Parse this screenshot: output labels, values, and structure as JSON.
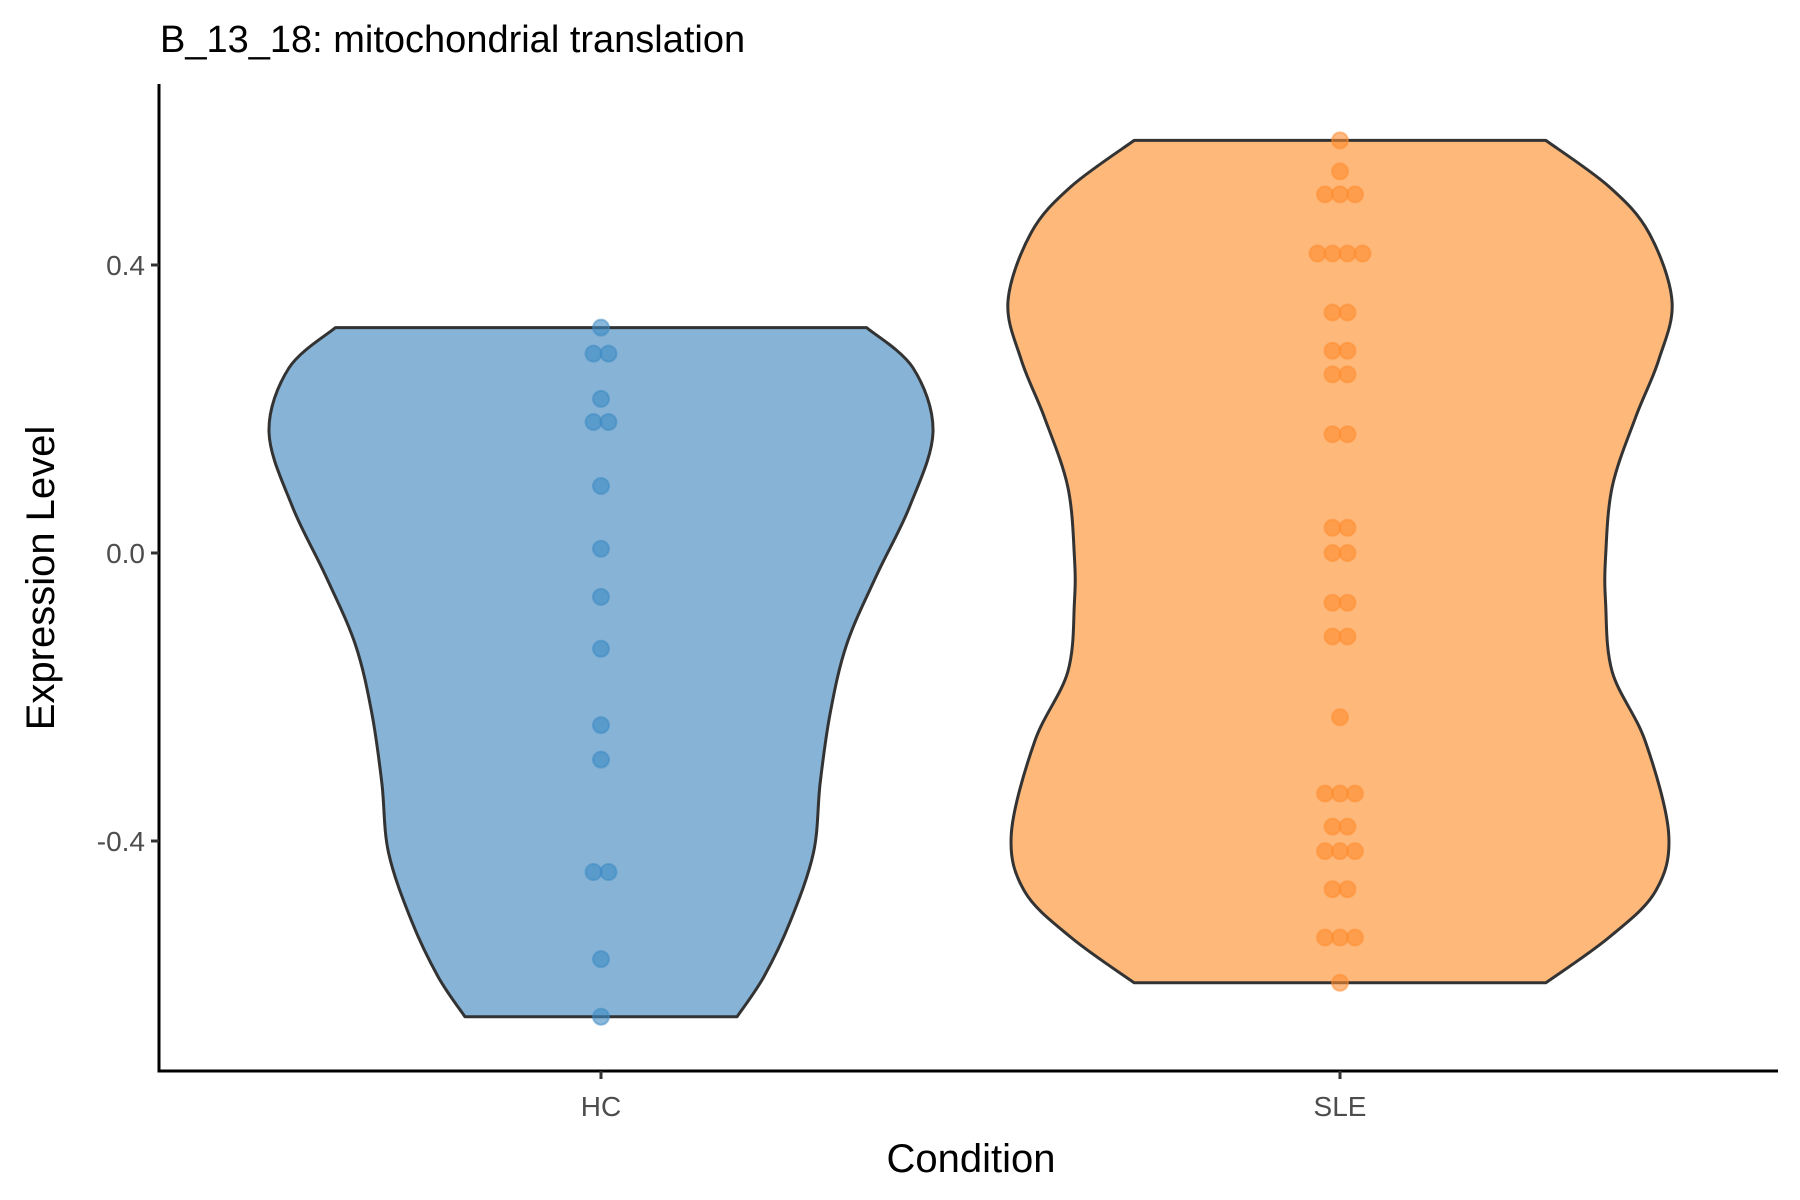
{
  "chart_data": {
    "type": "violin",
    "title": "B_13_18: mitochondrial translation",
    "xlabel": "Condition",
    "ylabel": "Expression Level",
    "ylim": [
      -0.72,
      0.66
    ],
    "yticks": [
      -0.4,
      0.0,
      0.4
    ],
    "ytick_labels": [
      "-0.4",
      "0.0",
      "0.4"
    ],
    "categories": [
      "HC",
      "SLE"
    ],
    "grid": false,
    "legend": "none",
    "series": [
      {
        "name": "HC",
        "fill_color": "#86b3d6",
        "point_color": "#3c8ac3",
        "points": [
          0.313,
          0.277,
          0.277,
          0.214,
          0.182,
          0.182,
          0.093,
          0.006,
          -0.061,
          -0.133,
          -0.239,
          -0.287,
          -0.443,
          -0.443,
          -0.564,
          -0.644
        ],
        "density_profile": {
          "y": [
            0.313,
            0.257,
            0.168,
            0.065,
            -0.031,
            -0.127,
            -0.223,
            -0.32,
            -0.416,
            -0.512,
            -0.589,
            -0.644
          ],
          "relative_width": [
            0.8,
            0.94,
            1.0,
            0.93,
            0.83,
            0.74,
            0.69,
            0.66,
            0.64,
            0.57,
            0.49,
            0.41
          ]
        }
      },
      {
        "name": "SLE",
        "fill_color": "#feb87a",
        "point_color": "#fd8c2e",
        "points": [
          0.573,
          0.53,
          0.498,
          0.498,
          0.498,
          0.416,
          0.416,
          0.416,
          0.416,
          0.334,
          0.334,
          0.281,
          0.281,
          0.248,
          0.248,
          0.165,
          0.165,
          0.035,
          0.035,
          0.0,
          0.0,
          -0.069,
          -0.069,
          -0.116,
          -0.116,
          -0.228,
          -0.334,
          -0.334,
          -0.334,
          -0.38,
          -0.38,
          -0.414,
          -0.414,
          -0.414,
          -0.467,
          -0.467,
          -0.534,
          -0.534,
          -0.534,
          -0.597
        ],
        "density_profile": {
          "y": [
            0.573,
            0.509,
            0.445,
            0.35,
            0.268,
            0.188,
            0.092,
            -0.005,
            -0.069,
            -0.165,
            -0.262,
            -0.39,
            -0.47,
            -0.534,
            -0.597
          ],
          "relative_width": [
            0.62,
            0.81,
            0.93,
            1.0,
            0.96,
            0.89,
            0.82,
            0.8,
            0.8,
            0.82,
            0.92,
            0.99,
            0.95,
            0.81,
            0.62
          ]
        }
      }
    ]
  },
  "colors": {
    "outline": "#333333",
    "axis": "#000000",
    "tick_text": "#4d4d4d"
  }
}
